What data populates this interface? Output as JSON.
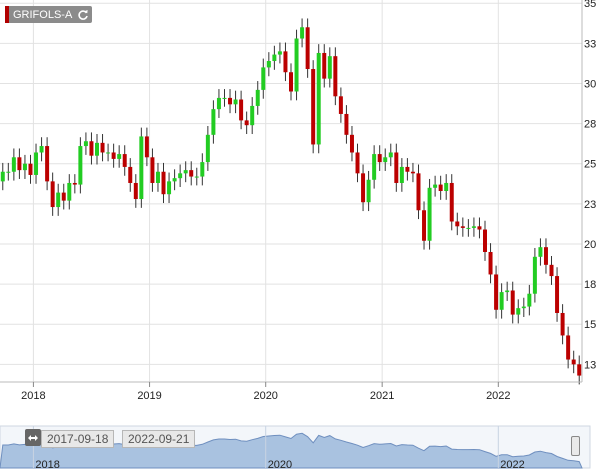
{
  "ticker": {
    "label": "GRIFOLS-A",
    "icon": "refresh-icon"
  },
  "navigator": {
    "start_date": "2017-09-18",
    "end_date": "2022-09-21",
    "years": [
      "2018",
      "2020",
      "2022"
    ]
  },
  "colors": {
    "up": "#22cc22",
    "down": "#bb0000",
    "wick": "#333333",
    "grid": "#e2e2e2",
    "navigator_fill": "#a9c2e0",
    "navigator_line": "#6f8fbf"
  },
  "chart_data": {
    "type": "candlestick",
    "title": "",
    "xlabel": "",
    "ylabel": "",
    "x_ticks": [
      "2018",
      "2019",
      "2020",
      "2021",
      "2022"
    ],
    "y_ticks": [
      "13",
      "15",
      "18",
      "20",
      "23",
      "25",
      "28",
      "30",
      "33",
      "35"
    ],
    "y_tick_values": [
      12.5,
      15,
      17.5,
      20,
      22.5,
      25,
      27.5,
      30,
      32.5,
      35
    ],
    "ylim": [
      11.4,
      35.2
    ],
    "xlim": [
      "2017-09-18",
      "2022-09-21"
    ],
    "grid": true,
    "y_axis_side": "right",
    "series": [
      {
        "close": [
          24.5,
          24.5,
          25.4,
          24.6,
          25,
          24.3,
          25.7,
          26.1,
          23.9,
          22.3,
          23.2,
          22.7,
          23.8,
          23.7,
          26.1,
          26.4,
          25.5,
          26.3,
          25.7,
          25.7,
          25.3,
          25.6,
          24.8,
          23.8,
          22.8,
          26.7,
          25.4,
          23.8,
          24.5,
          23.1,
          23.9,
          24.1,
          24.4,
          24.6,
          24.2,
          24.2,
          25.1,
          26.8,
          28.4,
          29.1,
          29.1,
          28.7,
          29,
          27.7,
          27.4,
          28.6,
          29.6,
          31,
          31.4,
          31.8,
          32,
          30.7,
          29.5,
          32.8,
          33.5,
          30.9,
          26.2,
          31.9,
          30.3,
          31.7,
          29.2,
          28.1,
          26.8,
          25.7,
          24.4,
          22.6,
          24,
          25.6,
          25.1,
          25.4,
          25.7,
          23.8,
          24.8,
          24.5,
          24.4,
          22.1,
          20.2,
          23.5,
          23.7,
          23.3,
          23.8,
          21.4,
          21.1,
          21,
          21,
          21.1,
          20.9,
          19.5,
          18.1,
          15.9,
          17,
          17.1,
          15.6,
          16,
          16.1,
          16.9,
          19.2,
          19.8,
          18.7,
          18,
          15.7,
          14.3,
          12.8,
          12.5,
          11.8
        ]
      }
    ]
  }
}
